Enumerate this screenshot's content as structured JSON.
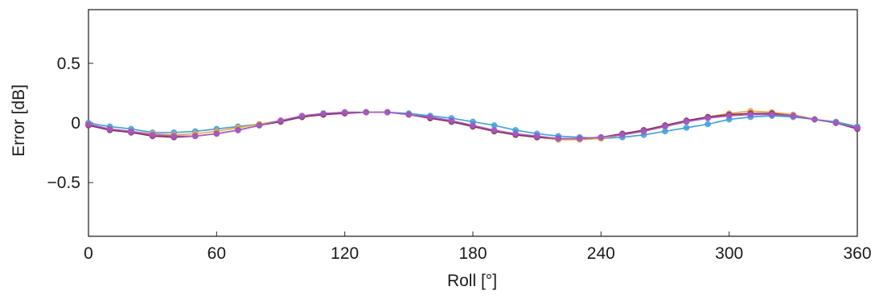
{
  "chart_data": {
    "type": "line",
    "xlabel": "Roll [°]",
    "ylabel": "Error [dB]",
    "xlim": [
      0,
      360
    ],
    "ylim": [
      -0.95,
      0.95
    ],
    "x_ticks": [
      0,
      60,
      120,
      180,
      240,
      300,
      360
    ],
    "x_tick_labels": [
      "0",
      "60",
      "120",
      "180",
      "240",
      "300",
      "360"
    ],
    "y_ticks": [
      0.5,
      0,
      -0.5
    ],
    "y_tick_labels": [
      "0.5",
      "0",
      "−0.5"
    ],
    "grid": false,
    "x": [
      0,
      10,
      20,
      30,
      40,
      50,
      60,
      70,
      80,
      90,
      100,
      110,
      120,
      130,
      140,
      150,
      160,
      170,
      180,
      190,
      200,
      210,
      220,
      230,
      240,
      250,
      260,
      270,
      280,
      290,
      300,
      310,
      320,
      330,
      340,
      350,
      360
    ],
    "series": [
      {
        "color": "#3aa0dc",
        "values": [
          0.0,
          -0.03,
          -0.05,
          -0.08,
          -0.08,
          -0.07,
          -0.05,
          -0.03,
          -0.01,
          0.02,
          0.05,
          0.08,
          0.09,
          0.09,
          0.09,
          0.08,
          0.06,
          0.04,
          0.01,
          -0.02,
          -0.06,
          -0.09,
          -0.11,
          -0.12,
          -0.13,
          -0.12,
          -0.1,
          -0.07,
          -0.04,
          -0.01,
          0.03,
          0.05,
          0.06,
          0.05,
          0.03,
          0.01,
          -0.03
        ]
      },
      {
        "color": "#e8a83c",
        "values": [
          -0.02,
          -0.05,
          -0.07,
          -0.09,
          -0.1,
          -0.09,
          -0.07,
          -0.04,
          -0.01,
          0.02,
          0.05,
          0.07,
          0.09,
          0.09,
          0.09,
          0.07,
          0.04,
          0.01,
          -0.03,
          -0.07,
          -0.1,
          -0.12,
          -0.14,
          -0.14,
          -0.13,
          -0.1,
          -0.07,
          -0.03,
          0.01,
          0.05,
          0.08,
          0.1,
          0.09,
          0.07,
          0.03,
          0.0,
          -0.04
        ]
      },
      {
        "color": "#8a2a5a",
        "values": [
          -0.02,
          -0.06,
          -0.08,
          -0.11,
          -0.12,
          -0.11,
          -0.09,
          -0.06,
          -0.02,
          0.01,
          0.05,
          0.07,
          0.08,
          0.09,
          0.09,
          0.07,
          0.04,
          0.01,
          -0.03,
          -0.07,
          -0.1,
          -0.12,
          -0.13,
          -0.13,
          -0.12,
          -0.09,
          -0.06,
          -0.02,
          0.02,
          0.05,
          0.07,
          0.08,
          0.08,
          0.06,
          0.03,
          0.0,
          -0.05
        ]
      },
      {
        "color": "#a45cc8",
        "values": [
          -0.01,
          -0.05,
          -0.07,
          -0.1,
          -0.11,
          -0.11,
          -0.09,
          -0.06,
          -0.02,
          0.02,
          0.06,
          0.08,
          0.09,
          0.09,
          0.09,
          0.07,
          0.05,
          0.02,
          -0.02,
          -0.06,
          -0.09,
          -0.11,
          -0.13,
          -0.13,
          -0.12,
          -0.1,
          -0.07,
          -0.03,
          0.01,
          0.04,
          0.06,
          0.07,
          0.07,
          0.06,
          0.03,
          0.0,
          -0.04
        ]
      }
    ]
  }
}
